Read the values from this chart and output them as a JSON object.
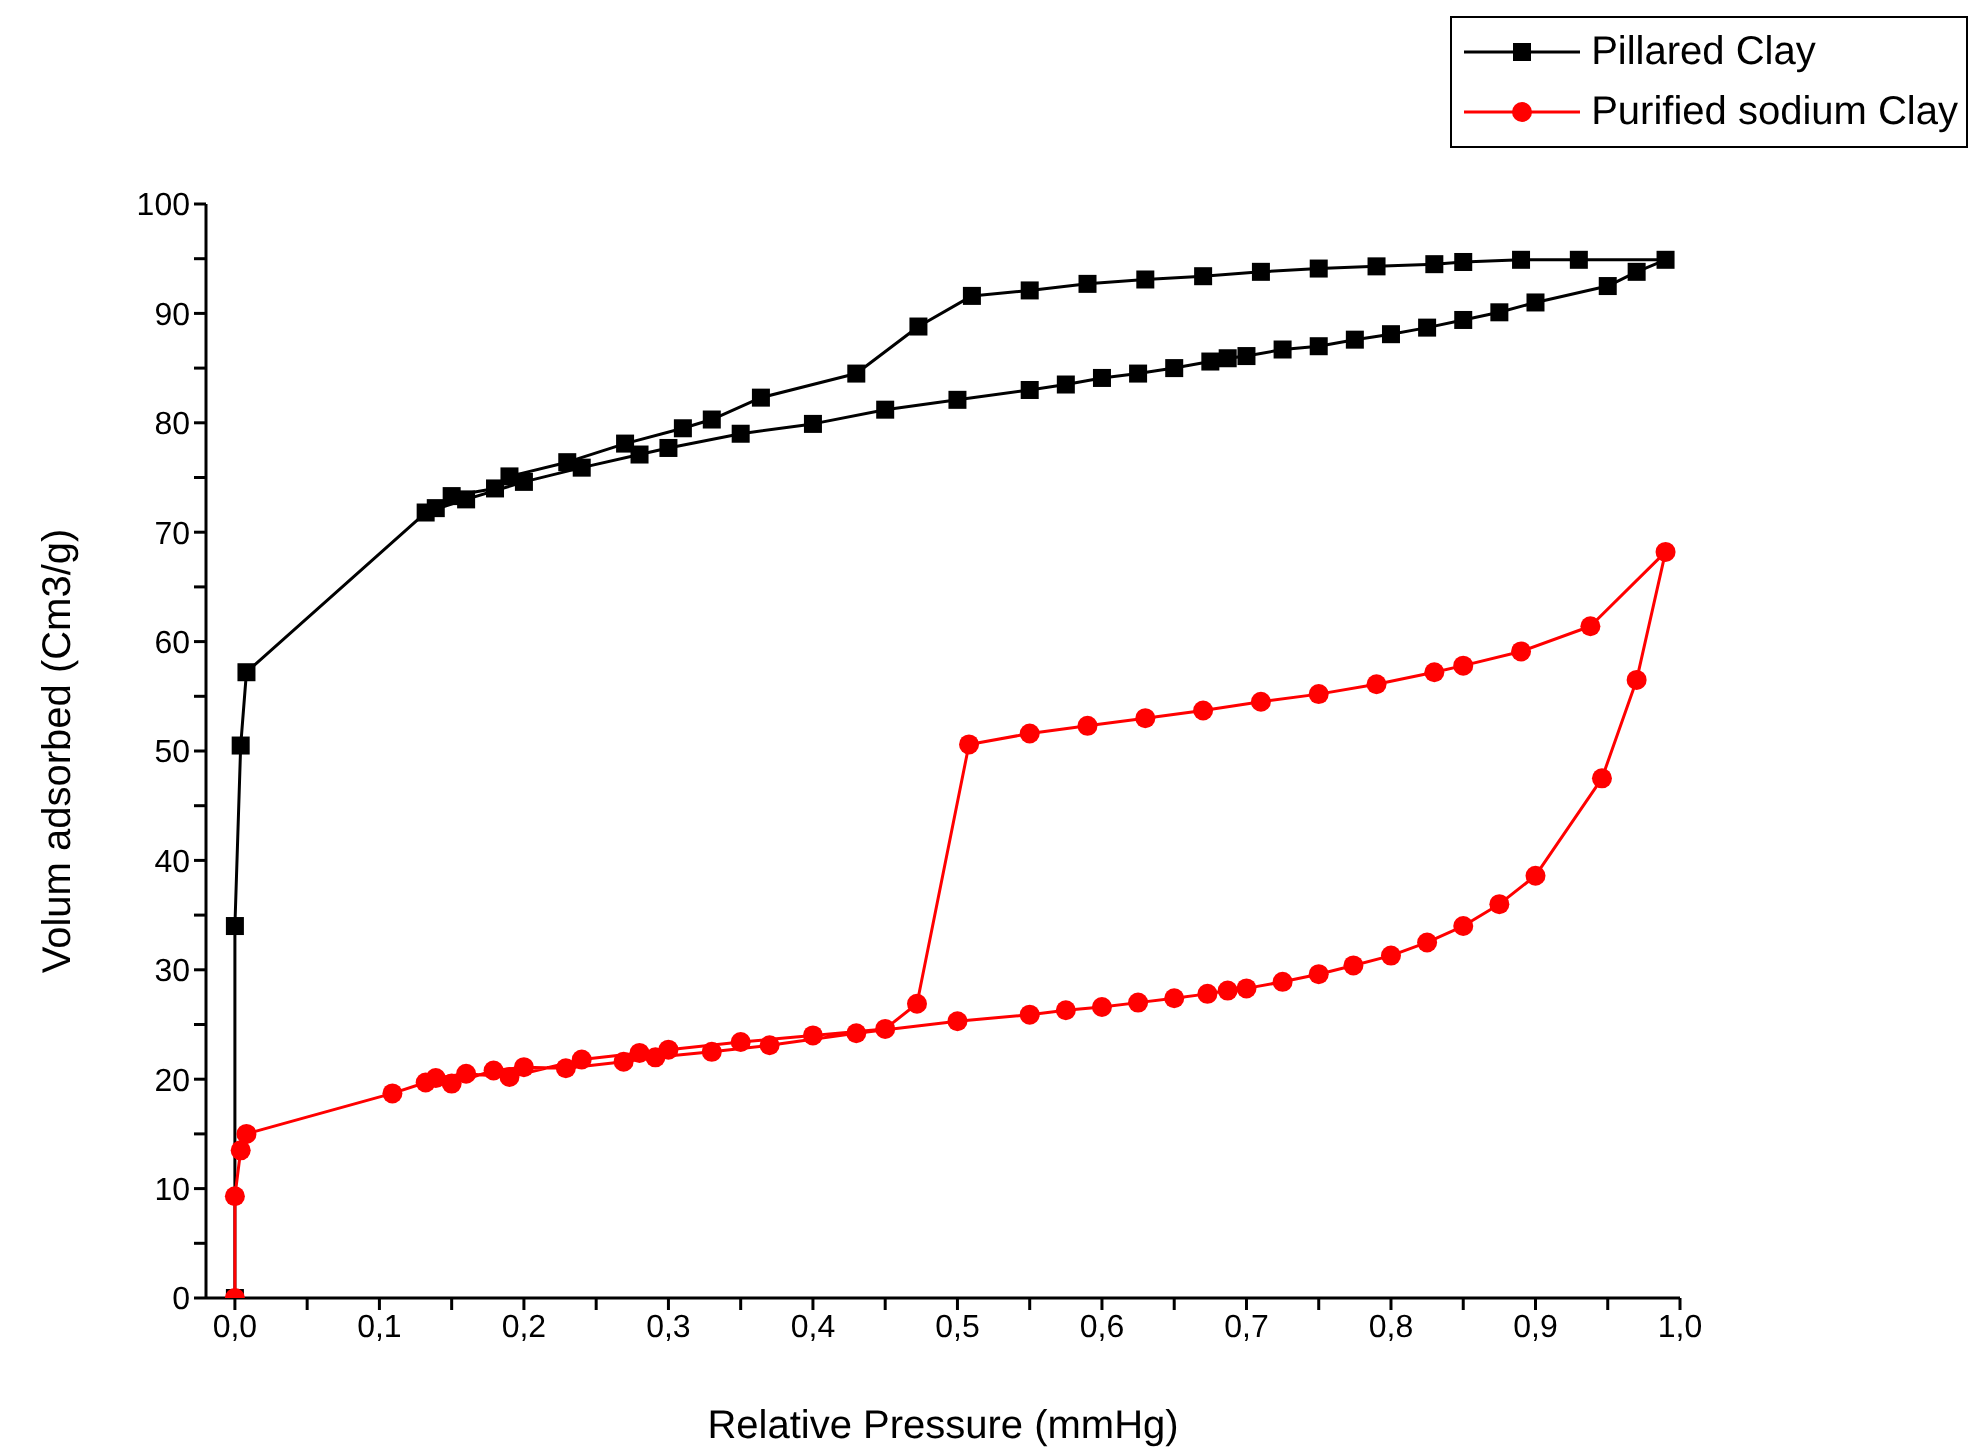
{
  "chart_data": {
    "type": "line",
    "xlabel": "Relative Pressure (mmHg)",
    "ylabel": "Volum adsorbed (Cm3/g)",
    "xlim": [
      -0.02,
      1.0
    ],
    "xticks": [
      {
        "value": 0,
        "label": "0,0"
      },
      {
        "value": 0.05,
        "label": null
      },
      {
        "value": 0.1,
        "label": "0,1"
      },
      {
        "value": 0.15,
        "label": null
      },
      {
        "value": 0.2,
        "label": "0,2"
      },
      {
        "value": 0.25,
        "label": null
      },
      {
        "value": 0.3,
        "label": "0,3"
      },
      {
        "value": 0.35,
        "label": null
      },
      {
        "value": 0.4,
        "label": "0,4"
      },
      {
        "value": 0.45,
        "label": null
      },
      {
        "value": 0.5,
        "label": "0,5"
      },
      {
        "value": 0.55,
        "label": null
      },
      {
        "value": 0.6,
        "label": "0,6"
      },
      {
        "value": 0.65,
        "label": null
      },
      {
        "value": 0.7,
        "label": "0,7"
      },
      {
        "value": 0.75,
        "label": null
      },
      {
        "value": 0.8,
        "label": "0,8"
      },
      {
        "value": 0.85,
        "label": null
      },
      {
        "value": 0.9,
        "label": "0,9"
      },
      {
        "value": 0.95,
        "label": null
      },
      {
        "value": 1.0,
        "label": "1,0"
      }
    ],
    "ylim": [
      0,
      100
    ],
    "yticks": [
      0,
      {
        "value": 5,
        "label": null
      },
      10,
      {
        "value": 15,
        "label": null
      },
      20,
      {
        "value": 25,
        "label": null
      },
      30,
      {
        "value": 35,
        "label": null
      },
      40,
      {
        "value": 45,
        "label": null
      },
      50,
      {
        "value": 55,
        "label": null
      },
      60,
      {
        "value": 65,
        "label": null
      },
      70,
      {
        "value": 75,
        "label": null
      },
      80,
      {
        "value": 85,
        "label": null
      },
      90,
      {
        "value": 95,
        "label": null
      },
      100
    ],
    "grid": false,
    "legend": "top right",
    "line_style": "solid",
    "series": [
      {
        "name": "Pillared Clay",
        "color": "#000000",
        "marker": "square",
        "x": [
          0,
          0,
          0.004,
          0.008,
          0.132,
          0.16,
          0.2,
          0.24,
          0.28,
          0.3,
          0.35,
          0.4,
          0.45,
          0.5,
          0.55,
          0.575,
          0.6,
          0.625,
          0.65,
          0.675,
          0.687,
          0.7,
          0.725,
          0.75,
          0.775,
          0.8,
          0.825,
          0.85,
          0.875,
          0.9,
          0.95,
          0.97,
          0.99,
          0.93,
          0.89,
          0.85,
          0.83,
          0.79,
          0.75,
          0.71,
          0.67,
          0.63,
          0.59,
          0.55,
          0.51,
          0.473,
          0.43,
          0.364,
          0.33,
          0.31,
          0.27,
          0.23,
          0.19,
          0.18,
          0.15,
          0.139
        ],
        "values": [
          0,
          34.0,
          50.5,
          57.2,
          71.8,
          73.0,
          74.6,
          75.9,
          77.1,
          77.7,
          79.0,
          79.9,
          81.2,
          82.1,
          83.0,
          83.5,
          84.1,
          84.5,
          85.0,
          85.6,
          85.9,
          86.1,
          86.7,
          87.0,
          87.6,
          88.1,
          88.7,
          89.4,
          90.1,
          91.0,
          92.5,
          93.8,
          94.9,
          94.9,
          94.9,
          94.7,
          94.5,
          94.3,
          94.1,
          93.8,
          93.4,
          93.1,
          92.7,
          92.1,
          91.6,
          88.8,
          84.5,
          82.3,
          80.3,
          79.5,
          78.1,
          76.4,
          75.1,
          74.0,
          73.3,
          72.2
        ]
      },
      {
        "name": "Purified sodium Clay",
        "color": "#ff0000",
        "marker": "circle",
        "x": [
          0,
          0,
          0.004,
          0.008,
          0.109,
          0.132,
          0.15,
          0.179,
          0.2,
          0.229,
          0.269,
          0.291,
          0.33,
          0.37,
          0.43,
          0.5,
          0.55,
          0.575,
          0.6,
          0.625,
          0.65,
          0.673,
          0.687,
          0.7,
          0.725,
          0.75,
          0.774,
          0.8,
          0.825,
          0.85,
          0.875,
          0.9,
          0.946,
          0.97,
          0.99,
          0.938,
          0.89,
          0.85,
          0.83,
          0.79,
          0.75,
          0.71,
          0.67,
          0.63,
          0.59,
          0.55,
          0.508,
          0.472,
          0.45,
          0.4,
          0.35,
          0.3,
          0.28,
          0.24,
          0.19,
          0.16,
          0.139
        ],
        "values": [
          0,
          9.3,
          13.5,
          15.0,
          18.7,
          19.7,
          19.6,
          20.8,
          21.1,
          21.0,
          21.6,
          22.0,
          22.5,
          23.1,
          24.2,
          25.3,
          25.9,
          26.3,
          26.6,
          27.0,
          27.4,
          27.8,
          28.1,
          28.3,
          28.9,
          29.6,
          30.4,
          31.3,
          32.5,
          34.0,
          36.0,
          38.6,
          47.5,
          56.5,
          68.2,
          61.4,
          59.1,
          57.8,
          57.2,
          56.1,
          55.2,
          54.5,
          53.7,
          53.0,
          52.3,
          51.6,
          50.6,
          26.9,
          24.6,
          24.0,
          23.4,
          22.7,
          22.4,
          21.8,
          20.2,
          20.5,
          20.1
        ]
      }
    ]
  }
}
